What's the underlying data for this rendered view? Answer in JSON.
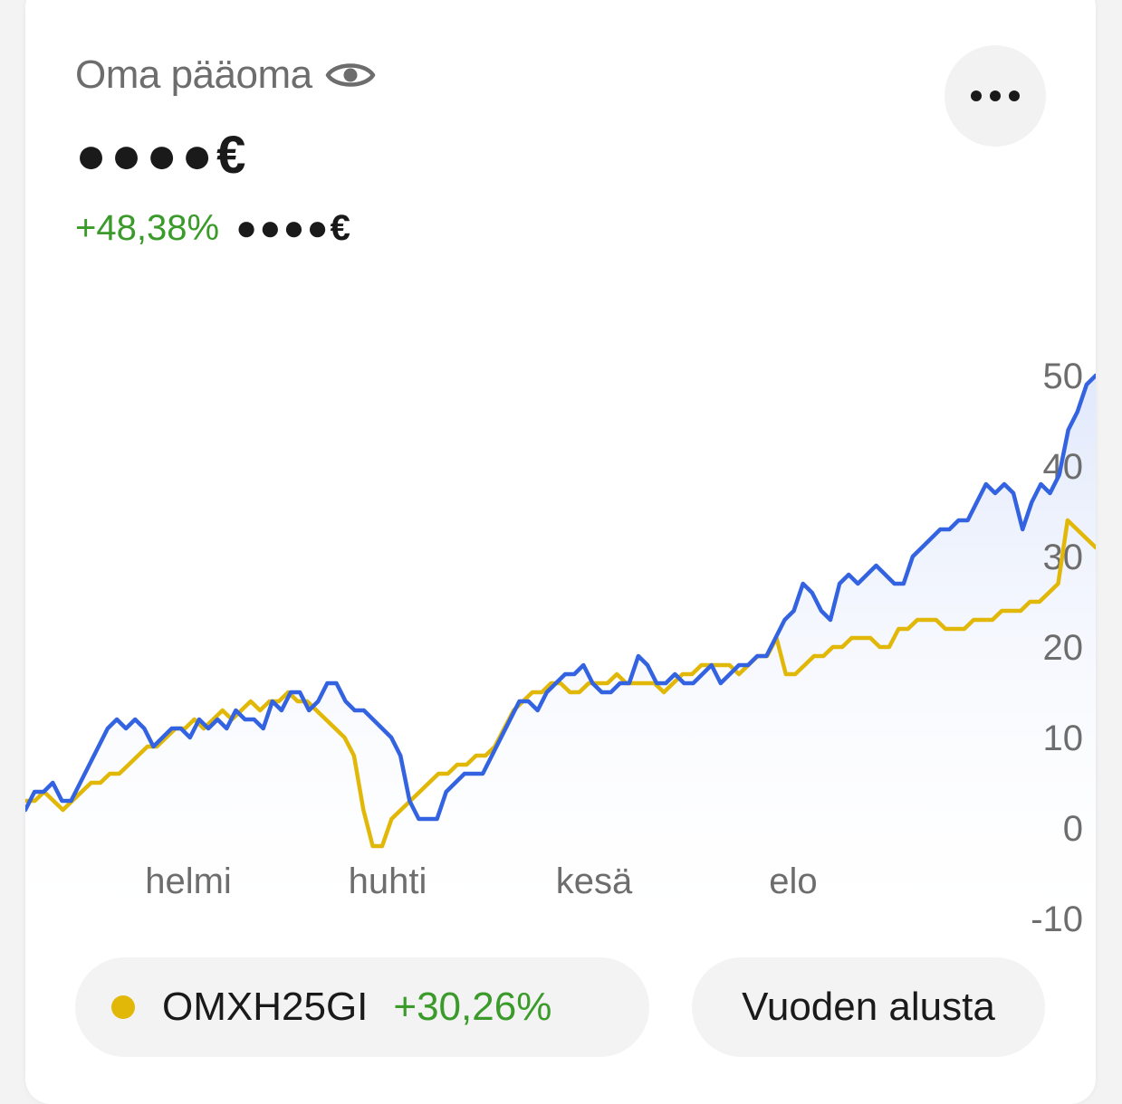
{
  "header": {
    "title": "Oma pääoma",
    "eye_icon": "eye-icon",
    "more_icon": "more-horizontal-icon",
    "value": "●●●●€",
    "change_percent": "+48,38%",
    "change_amount": "●●●●€"
  },
  "chart_data": {
    "type": "line",
    "y_ticks": [
      "50",
      "40",
      "30",
      "20",
      "10",
      "0",
      "-10"
    ],
    "x_ticks": [
      "helmi",
      "huhti",
      "kesä",
      "elo"
    ],
    "ylim": [
      -10,
      50
    ],
    "series": [
      {
        "color": "#3363e0",
        "fill": "#e6ecfb",
        "values": [
          2,
          4,
          4,
          5,
          3,
          3,
          5,
          7,
          9,
          11,
          12,
          11,
          12,
          11,
          9,
          10,
          11,
          11,
          10,
          12,
          11,
          12,
          11,
          13,
          12,
          12,
          11,
          14,
          13,
          15,
          15,
          13,
          14,
          16,
          16,
          14,
          13,
          13,
          12,
          11,
          10,
          8,
          3,
          1,
          1,
          1,
          4,
          5,
          6,
          6,
          6,
          8,
          10,
          12,
          14,
          14,
          13,
          15,
          16,
          17,
          17,
          18,
          16,
          15,
          15,
          16,
          16,
          19,
          18,
          16,
          16,
          17,
          16,
          16,
          17,
          18,
          16,
          17,
          18,
          18,
          19,
          19,
          21,
          23,
          24,
          27,
          26,
          24,
          23,
          27,
          28,
          27,
          28,
          29,
          28,
          27,
          27,
          30,
          31,
          32,
          33,
          33,
          34,
          34,
          36,
          38,
          37,
          38,
          37,
          33,
          36,
          38,
          37,
          39,
          44,
          46,
          49,
          50
        ]
      },
      {
        "color": "#e2b808",
        "values": [
          3,
          3,
          4,
          3,
          2,
          3,
          4,
          5,
          5,
          6,
          6,
          7,
          8,
          9,
          9,
          10,
          11,
          11,
          12,
          11,
          12,
          13,
          12,
          13,
          14,
          13,
          14,
          14,
          15,
          14,
          14,
          13,
          12,
          11,
          10,
          8,
          2,
          -2,
          -2,
          1,
          2,
          3,
          4,
          5,
          6,
          6,
          7,
          7,
          8,
          8,
          9,
          11,
          13,
          14,
          15,
          15,
          16,
          16,
          15,
          15,
          16,
          16,
          16,
          17,
          16,
          16,
          16,
          16,
          15,
          16,
          17,
          17,
          18,
          18,
          18,
          18,
          17,
          18,
          19,
          19,
          21,
          17,
          17,
          18,
          19,
          19,
          20,
          20,
          21,
          21,
          21,
          20,
          20,
          22,
          22,
          23,
          23,
          23,
          22,
          22,
          22,
          23,
          23,
          23,
          24,
          24,
          24,
          25,
          25,
          26,
          27,
          34,
          33,
          32,
          31
        ]
      }
    ]
  },
  "footer": {
    "index_name": "OMXH25GI",
    "index_change": "+30,26%",
    "period_label": "Vuoden alusta"
  }
}
